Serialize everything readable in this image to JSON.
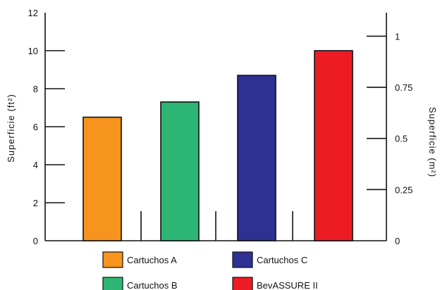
{
  "chart_data": {
    "type": "bar",
    "categories": [
      "Cartuchos A",
      "Cartuchos B",
      "Cartuchos C",
      "BevASSURE II"
    ],
    "values": [
      6.5,
      7.3,
      8.7,
      10.0
    ],
    "colors": [
      "#f7941d",
      "#2db573",
      "#2e3192",
      "#ed1c24"
    ],
    "ylabel": "Superficie (ft²)",
    "ylabel_right": "Superficie (m²)",
    "ylim": [
      0,
      12
    ],
    "yticks": [
      0,
      2,
      4,
      6,
      8,
      10,
      12
    ],
    "ylim_right": [
      0,
      1.115
    ],
    "yticks_right": [
      "0",
      "0.25",
      "0.5",
      "0.75",
      "1"
    ],
    "yticks_right_values": [
      0,
      0.25,
      0.5,
      0.75,
      1
    ],
    "grid": false,
    "legend_position": "bottom",
    "legend": [
      {
        "label": "Cartuchos A",
        "color": "#f7941d"
      },
      {
        "label": "Cartuchos C",
        "color": "#2e3192"
      },
      {
        "label": "Cartuchos B",
        "color": "#2db573"
      },
      {
        "label": "BevASSURE II",
        "color": "#ed1c24"
      }
    ]
  }
}
